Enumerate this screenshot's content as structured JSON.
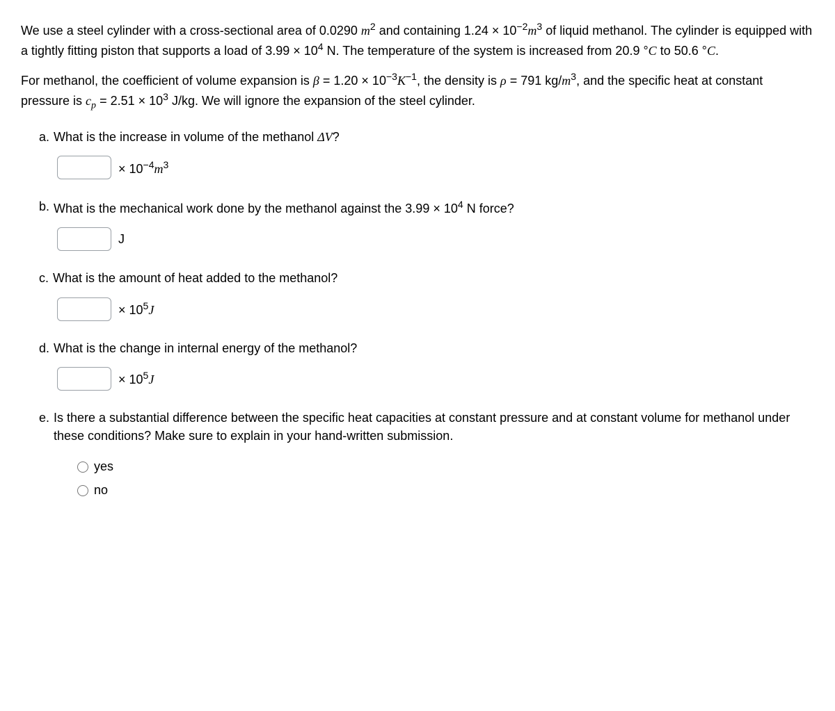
{
  "intro": {
    "p1_a": "We use a steel cylinder with a cross-sectional area of 0.0290 ",
    "p1_m2": "m",
    "p1_b": " and containing 1.24 × 10",
    "p1_exp1": "−2",
    "p1_m3": "m",
    "p1_c": " of liquid methanol. The cylinder is equipped with a tightly fitting piston that supports a load of 3.99 × 10",
    "p1_exp2": "4",
    "p1_d": " N. The temperature of the system is increased from 20.9 °",
    "p1_C1": "C",
    "p1_e": " to 50.6 °",
    "p1_C2": "C",
    "p1_f": ".",
    "p2_a": "For methanol, the coefficient of volume expansion is ",
    "p2_beta": "β",
    "p2_b": " = 1.20 × 10",
    "p2_exp1": "−3",
    "p2_K": "K",
    "p2_exp2": "−1",
    "p2_c": ", the density is ",
    "p2_rho": "ρ",
    "p2_d": " = 791 kg/",
    "p2_m3": "m",
    "p2_e": ", and the specific heat at constant pressure is ",
    "p2_cp": "c",
    "p2_cp_sub": "p",
    "p2_f": " = 2.51 × 10",
    "p2_exp3": "3",
    "p2_g": " J/kg. We will ignore the expansion of the steel cylinder."
  },
  "questions": {
    "a": {
      "letter": "a.",
      "text_a": "What is the increase in volume of the methanol ",
      "dV": "ΔV",
      "text_b": "?",
      "unit_a": "× 10",
      "unit_exp": "−4",
      "unit_m": "m",
      "unit_m_exp": "3"
    },
    "b": {
      "letter": "b.",
      "text_a": "What is the mechanical work done by the methanol against the 3.99 × 10",
      "exp": "4",
      "text_b": " N force?",
      "unit": "J"
    },
    "c": {
      "letter": "c.",
      "text": "What is the amount of heat added to the methanol?",
      "unit_a": "× 10",
      "unit_exp": "5",
      "unit_J": "J"
    },
    "d": {
      "letter": "d.",
      "text": "What is the change in internal energy of the methanol?",
      "unit_a": "× 10",
      "unit_exp": "5",
      "unit_J": "J"
    },
    "e": {
      "letter": "e.",
      "text": "Is there a substantial difference between the specific heat capacities at constant pressure and at constant volume for methanol under these conditions? Make sure to explain in your hand-written submission.",
      "opt_yes": "yes",
      "opt_no": "no"
    }
  }
}
